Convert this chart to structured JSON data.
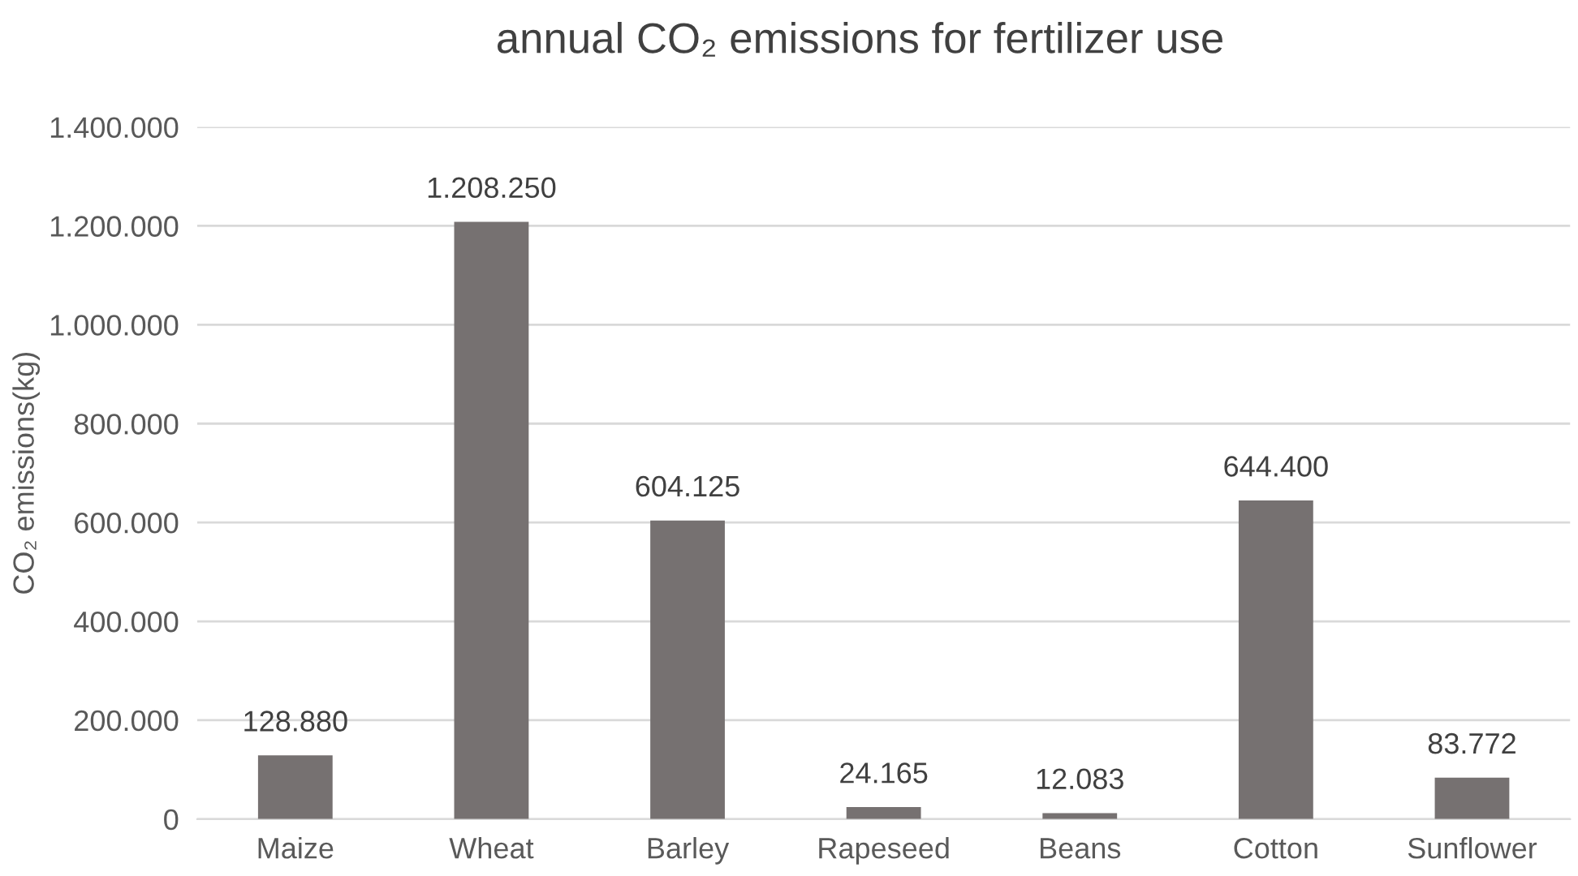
{
  "chart_data": {
    "type": "bar",
    "title": "annual CO₂ emissions for fertilizer use",
    "ylabel": "CO₂ emissions(kg)",
    "categories": [
      "Maize",
      "Wheat",
      "Barley",
      "Rapeseed",
      "Beans",
      "Cotton",
      "Sunflower"
    ],
    "values": [
      128880,
      1208250,
      604125,
      24165,
      12083,
      644400,
      83772
    ],
    "value_labels": [
      "128.880",
      "1.208.250",
      "604.125",
      "24.165",
      "12.083",
      "644.400",
      "83.772"
    ],
    "color": "#767171",
    "ylim": [
      0,
      1400000
    ],
    "yticks": [
      {
        "value": 0,
        "label": "0"
      },
      {
        "value": 200000,
        "label": "200.000"
      },
      {
        "value": 400000,
        "label": "400.000"
      },
      {
        "value": 600000,
        "label": "600.000"
      },
      {
        "value": 800000,
        "label": "800.000"
      },
      {
        "value": 1000000,
        "label": "1.000.000"
      },
      {
        "value": 1200000,
        "label": "1.200.000"
      },
      {
        "value": 1400000,
        "label": "1.400.000"
      }
    ],
    "grid": "y",
    "legend": false
  }
}
